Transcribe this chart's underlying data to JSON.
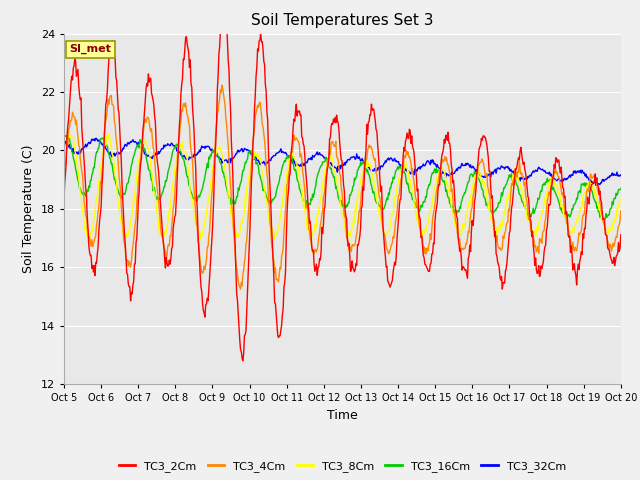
{
  "title": "Soil Temperatures Set 3",
  "xlabel": "Time",
  "ylabel": "Soil Temperature (C)",
  "ylim": [
    12,
    24
  ],
  "yticks": [
    12,
    14,
    16,
    18,
    20,
    22,
    24
  ],
  "x_labels": [
    "Oct 5",
    "Oct 6",
    "Oct 7",
    "Oct 8",
    "Oct 9",
    "Oct 10",
    "Oct 11",
    "Oct 12",
    "Oct 13",
    "Oct 14",
    "Oct 15",
    "Oct 16",
    "Oct 17",
    "Oct 18",
    "Oct 19",
    "Oct 20"
  ],
  "series_colors": [
    "#ff0000",
    "#ff8800",
    "#ffff00",
    "#00cc00",
    "#0000ff"
  ],
  "legend_labels": [
    "TC3_2Cm",
    "TC3_4Cm",
    "TC3_8Cm",
    "TC3_16Cm",
    "TC3_32Cm"
  ],
  "background_color": "#e8e8e8",
  "fig_facecolor": "#f0f0f0",
  "annotation_text": "SI_met",
  "annotation_bg": "#ffff99",
  "annotation_border": "#999900",
  "annotation_text_color": "#880000",
  "n_days": 15,
  "pts_per_day": 48
}
